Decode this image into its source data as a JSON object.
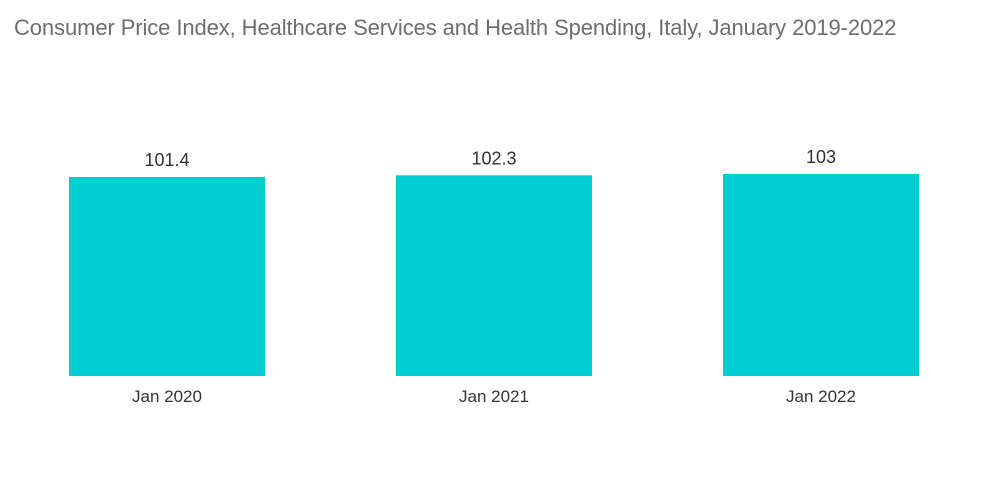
{
  "chart_data": {
    "type": "bar",
    "title": "Consumer Price Index, Healthcare Services and Health Spending, Italy, January 2019-2022",
    "categories": [
      "Jan 2020",
      "Jan 2021",
      "Jan 2022"
    ],
    "values": [
      101.4,
      102.3,
      103
    ],
    "value_labels": [
      "101.4",
      "102.3",
      "103"
    ],
    "xlabel": "",
    "ylabel": "",
    "grid": false,
    "legend": "none",
    "bar_color": "#00CED1"
  }
}
